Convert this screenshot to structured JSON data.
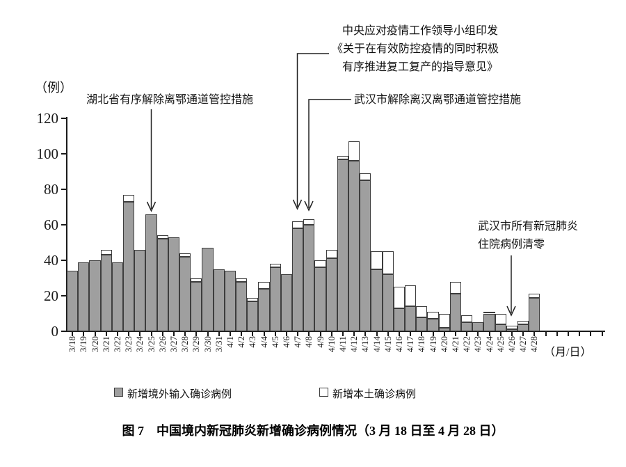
{
  "y_axis": {
    "unit": "（例）",
    "ticks": [
      120,
      100,
      80,
      60,
      40,
      20,
      0
    ]
  },
  "x_axis": {
    "unit": "（月/日）"
  },
  "chart_data": {
    "type": "bar",
    "stacked": true,
    "title": "中国境内新冠肺炎新增确诊病例情况",
    "ylim": [
      0,
      120
    ],
    "grid": false,
    "legend_position": "bottom",
    "categories": [
      "3/18",
      "3/19",
      "3/20",
      "3/21",
      "3/22",
      "3/23",
      "3/24",
      "3/25",
      "3/26",
      "3/27",
      "3/28",
      "3/29",
      "3/30",
      "3/31",
      "4/1",
      "4/2",
      "4/3",
      "4/4",
      "4/5",
      "4/6",
      "4/7",
      "4/8",
      "4/9",
      "4/10",
      "4/11",
      "4/12",
      "4/13",
      "4/14",
      "4/15",
      "4/16",
      "4/17",
      "4/18",
      "4/19",
      "4/20",
      "4/21",
      "4/22",
      "4/23",
      "4/24",
      "4/25",
      "4/26",
      "4/27",
      "4/28"
    ],
    "series": [
      {
        "name": "新增境外输入确诊病例",
        "color": "#9f9f9f",
        "values": [
          34,
          39,
          40,
          43,
          39,
          73,
          46,
          66,
          52,
          53,
          42,
          28,
          47,
          35,
          34,
          28,
          17,
          24,
          36,
          32,
          58,
          60,
          36,
          41,
          97,
          96,
          85,
          35,
          32,
          13,
          14,
          8,
          7,
          2,
          21,
          5,
          5,
          10,
          4,
          1,
          4,
          19
        ]
      },
      {
        "name": "新增本土确诊病例",
        "color": "#ffffff",
        "values": [
          0,
          0,
          0,
          3,
          0,
          4,
          0,
          0,
          2,
          0,
          2,
          2,
          0,
          0,
          0,
          2,
          2,
          4,
          2,
          0,
          4,
          3,
          4,
          5,
          2,
          11,
          4,
          10,
          13,
          12,
          12,
          6,
          4,
          8,
          7,
          4,
          0,
          1,
          6,
          2,
          2,
          2
        ]
      }
    ]
  },
  "annotations": {
    "hubei": "湖北省有序解除离鄂通道管控措施",
    "central_line1": "中央应对疫情工作领导小组印发",
    "central_line2": "《关于在有效防控疫情的同时积极",
    "central_line3": "有序推进复工复产的指导意见》",
    "wuhan_lift": "武汉市解除离汉离鄂通道管控措施",
    "wuhan_zero_line1": "武汉市所有新冠肺炎",
    "wuhan_zero_line2": "住院病例清零"
  },
  "legend": {
    "imported": "新增境外输入确诊病例",
    "local": "新增本土确诊病例"
  },
  "caption": "图 7　中国境内新冠肺炎新增确诊病例情况（3 月 18 日至 4 月 28 日）"
}
